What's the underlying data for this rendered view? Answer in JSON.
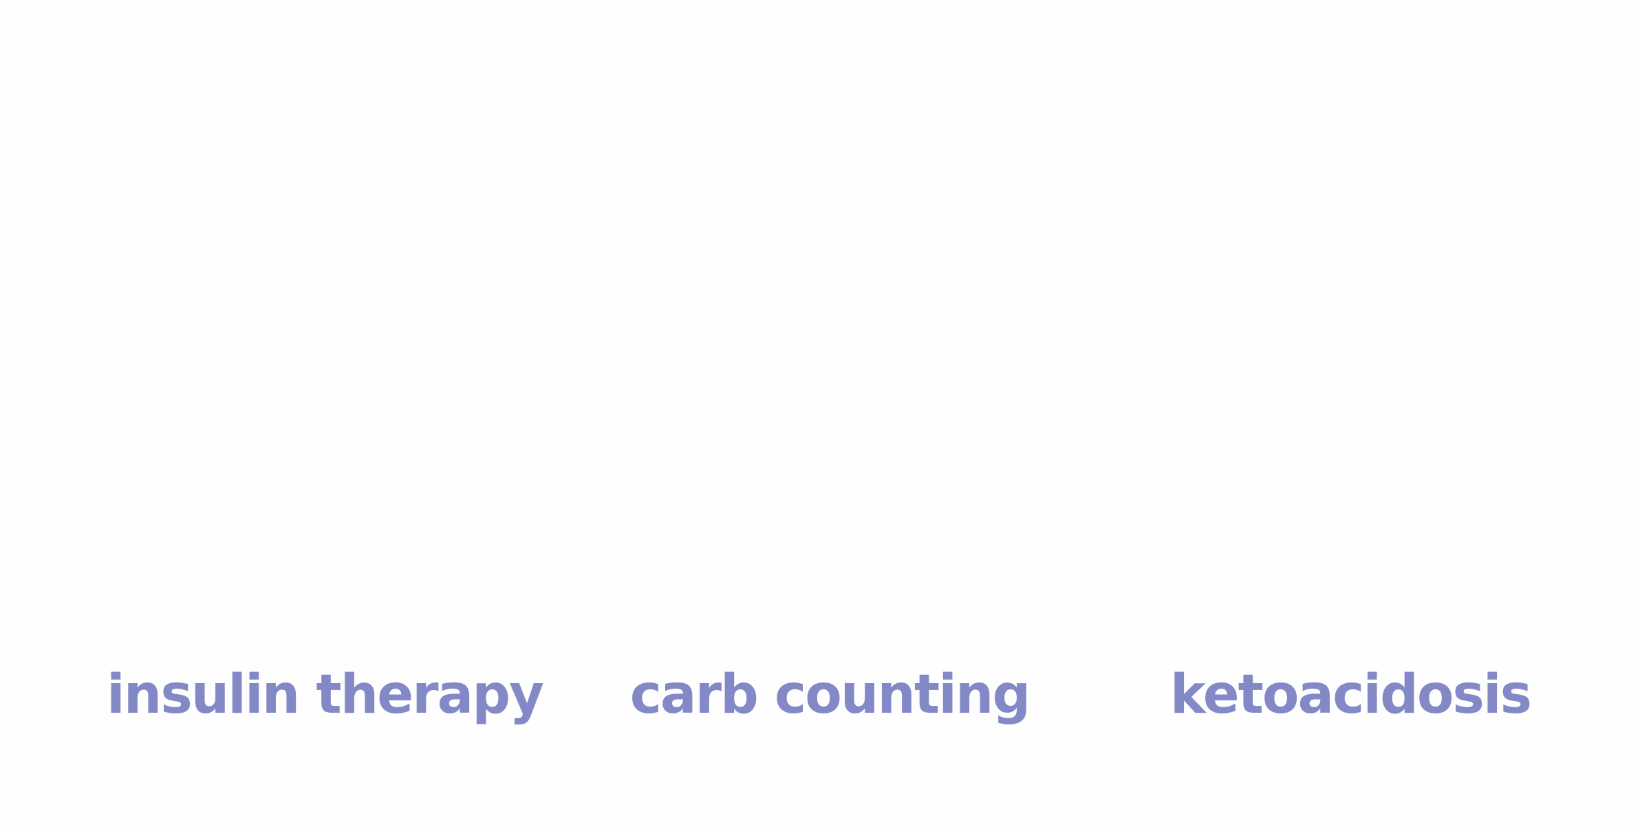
{
  "terms": [
    {
      "label": "insulin therapy"
    },
    {
      "label": "carb counting"
    },
    {
      "label": "ketoacidosis"
    }
  ],
  "colors": {
    "background": "#fefefe",
    "term_text": "#8389c6"
  }
}
